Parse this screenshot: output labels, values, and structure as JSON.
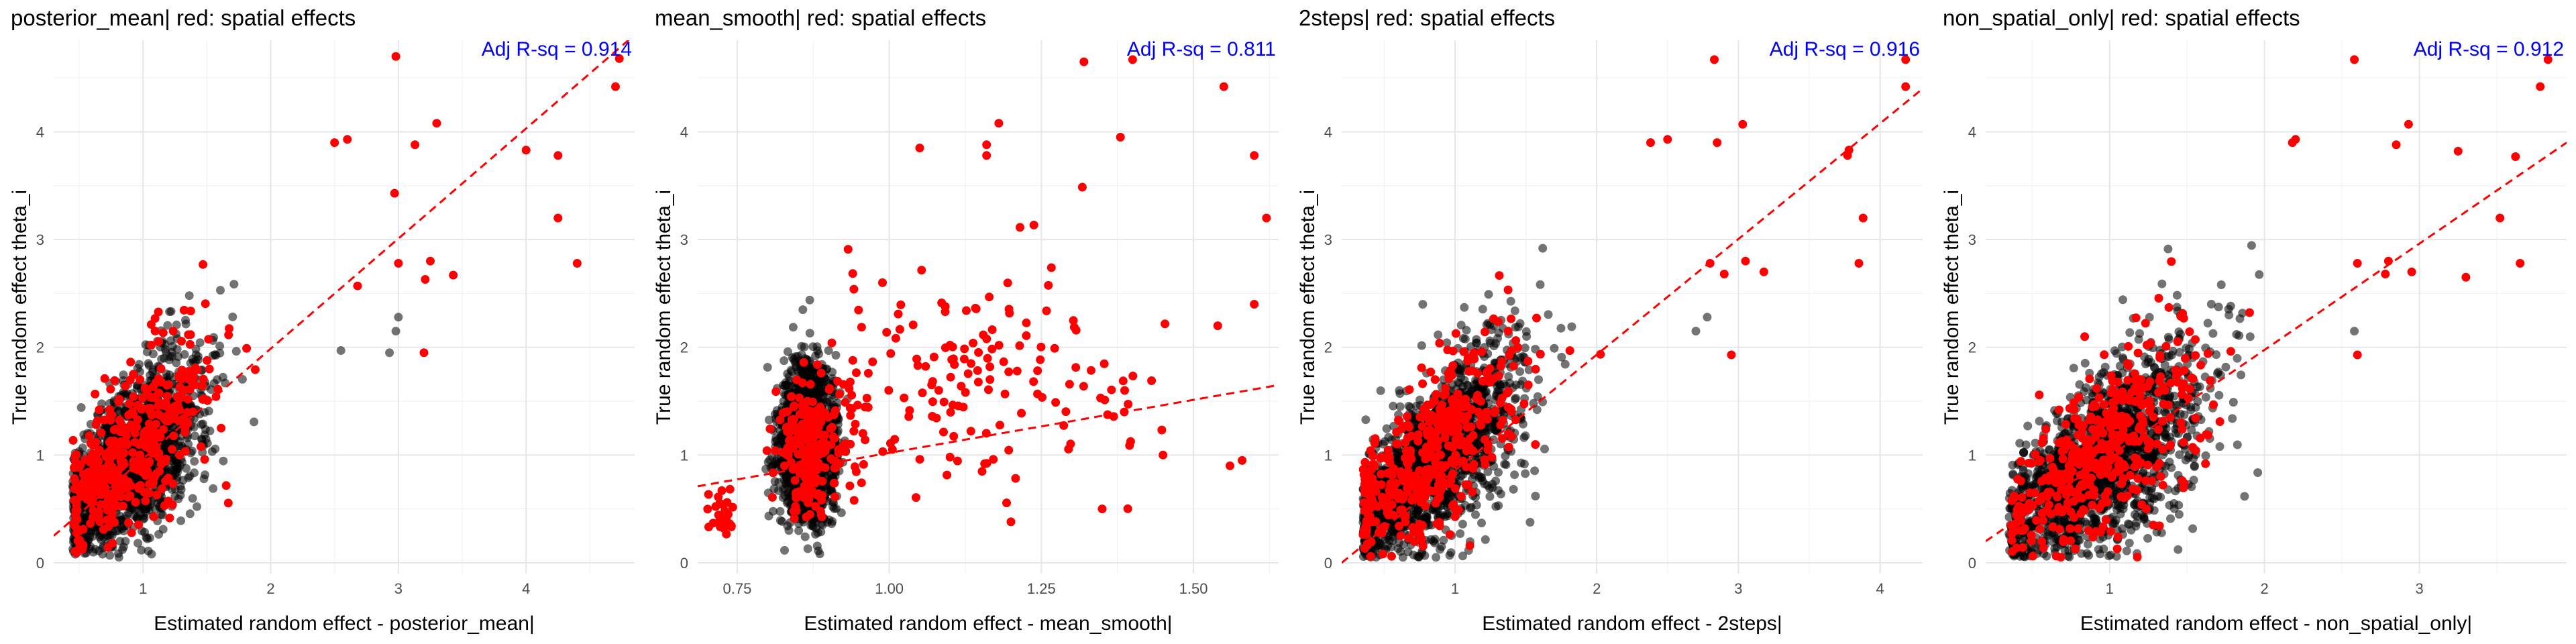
{
  "chart_data": [
    {
      "type": "scatter",
      "title": "posterior_mean| red: spatial effects",
      "xlabel": "Estimated random effect - posterior_mean|",
      "ylabel": "True random effect theta_i",
      "annotation": "Adj R-sq = 0.914",
      "xlim": [
        0.3,
        4.85
      ],
      "ylim": [
        -0.1,
        4.85
      ],
      "xticks": [
        1,
        2,
        3,
        4
      ],
      "yticks": [
        0,
        1,
        2,
        3,
        4
      ],
      "fit_line": {
        "x": [
          0.3,
          4.85
        ],
        "y": [
          0.25,
          4.9
        ]
      },
      "grid": true,
      "series": [
        {
          "color": "#000000",
          "cloud": {
            "cx": 0.9,
            "cy": 0.95,
            "sx": 0.3,
            "sy": 0.45,
            "slope": 1.0,
            "n": 1600,
            "xmin": 0.45,
            "ymin": 0.05
          }
        },
        {
          "color": "#ff0000",
          "cloud": {
            "cx": 0.9,
            "cy": 1.0,
            "sx": 0.3,
            "sy": 0.45,
            "slope": 1.0,
            "n": 420,
            "xmin": 0.45,
            "ymin": 0.05
          }
        }
      ],
      "outliers": [
        {
          "x": 2.98,
          "y": 4.7,
          "red": true
        },
        {
          "x": 3.3,
          "y": 4.08,
          "red": true
        },
        {
          "x": 3.13,
          "y": 3.88,
          "red": true
        },
        {
          "x": 2.6,
          "y": 3.93,
          "red": true
        },
        {
          "x": 2.5,
          "y": 3.9,
          "red": true
        },
        {
          "x": 4.7,
          "y": 4.42,
          "red": true
        },
        {
          "x": 4.73,
          "y": 4.68,
          "red": true
        },
        {
          "x": 4.0,
          "y": 3.83,
          "red": true
        },
        {
          "x": 4.25,
          "y": 3.78,
          "red": true
        },
        {
          "x": 2.97,
          "y": 3.43,
          "red": true
        },
        {
          "x": 3.0,
          "y": 2.78,
          "red": true
        },
        {
          "x": 3.25,
          "y": 2.8,
          "red": true
        },
        {
          "x": 3.43,
          "y": 2.67,
          "red": true
        },
        {
          "x": 3.21,
          "y": 2.63,
          "red": true
        },
        {
          "x": 3.2,
          "y": 1.95,
          "red": true
        },
        {
          "x": 2.93,
          "y": 1.95,
          "red": false
        },
        {
          "x": 2.98,
          "y": 2.15,
          "red": false
        },
        {
          "x": 3.0,
          "y": 2.28,
          "red": false
        },
        {
          "x": 4.25,
          "y": 3.2,
          "red": true
        },
        {
          "x": 4.4,
          "y": 2.78,
          "red": true
        },
        {
          "x": 2.68,
          "y": 2.57,
          "red": true
        },
        {
          "x": 2.55,
          "y": 1.97,
          "red": false
        }
      ]
    },
    {
      "type": "scatter",
      "title": "mean_smooth| red: spatial effects",
      "xlabel": "Estimated random effect - mean_smooth|",
      "ylabel": "True random effect theta_i",
      "annotation": "Adj R-sq = 0.811",
      "xlim": [
        0.685,
        1.64
      ],
      "ylim": [
        -0.1,
        4.85
      ],
      "xticks": [
        0.75,
        1.0,
        1.25,
        1.5
      ],
      "xtick_labels": [
        "0.75",
        "1.00",
        "1.25",
        "1.50"
      ],
      "yticks": [
        0,
        1,
        2,
        3,
        4
      ],
      "fit_line": {
        "x": [
          0.685,
          1.64
        ],
        "y": [
          0.71,
          1.65
        ]
      },
      "grid": true,
      "series": [
        {
          "color": "#000000",
          "cloud": {
            "cx": 0.865,
            "cy": 1.1,
            "sx": 0.022,
            "sy": 0.55,
            "slope": 0.0,
            "n": 1800,
            "xmin": 0.78,
            "ymin": 0.05
          }
        },
        {
          "color": "#ff0000",
          "cloud": {
            "cx": 0.87,
            "cy": 1.05,
            "sx": 0.025,
            "sy": 0.5,
            "slope": 0.0,
            "n": 220,
            "xmin": 0.78,
            "ymin": 0.05
          }
        },
        {
          "color": "#ff0000",
          "cloud": {
            "cx": 1.1,
            "cy": 1.7,
            "sx": 0.16,
            "sy": 0.75,
            "slope": 0.0,
            "n": 170,
            "xmin": 0.9,
            "ymin": 0.3
          }
        },
        {
          "color": "#ff0000",
          "cloud": {
            "cx": 0.725,
            "cy": 0.45,
            "sx": 0.012,
            "sy": 0.2,
            "slope": 0.0,
            "n": 28,
            "xmin": 0.7,
            "ymin": 0.1
          }
        }
      ],
      "outliers": [
        {
          "x": 1.32,
          "y": 4.65,
          "red": true
        },
        {
          "x": 1.55,
          "y": 4.42,
          "red": true
        },
        {
          "x": 1.6,
          "y": 3.78,
          "red": true
        },
        {
          "x": 1.38,
          "y": 3.95,
          "red": true
        },
        {
          "x": 1.18,
          "y": 4.08,
          "red": true
        },
        {
          "x": 1.16,
          "y": 3.88,
          "red": true
        },
        {
          "x": 1.16,
          "y": 3.78,
          "red": true
        },
        {
          "x": 1.05,
          "y": 3.85,
          "red": true
        },
        {
          "x": 1.4,
          "y": 4.67,
          "red": true
        },
        {
          "x": 1.62,
          "y": 3.2,
          "red": true
        },
        {
          "x": 1.45,
          "y": 1.0,
          "red": true
        },
        {
          "x": 1.56,
          "y": 0.9,
          "red": true
        },
        {
          "x": 1.58,
          "y": 0.95,
          "red": true
        },
        {
          "x": 1.35,
          "y": 0.5,
          "red": true
        },
        {
          "x": 1.2,
          "y": 0.38,
          "red": true
        },
        {
          "x": 1.6,
          "y": 2.4,
          "red": true
        },
        {
          "x": 1.54,
          "y": 2.2,
          "red": true
        }
      ]
    },
    {
      "type": "scatter",
      "title": "2steps| red: spatial effects",
      "xlabel": "Estimated random effect - 2steps|",
      "ylabel": "True random effect theta_i",
      "annotation": "Adj R-sq = 0.916",
      "xlim": [
        0.2,
        4.3
      ],
      "ylim": [
        -0.1,
        4.85
      ],
      "xticks": [
        1,
        2,
        3,
        4
      ],
      "yticks": [
        0,
        1,
        2,
        3,
        4
      ],
      "fit_line": {
        "x": [
          0.2,
          4.3
        ],
        "y": [
          0.0,
          4.4
        ]
      },
      "grid": true,
      "series": [
        {
          "color": "#000000",
          "cloud": {
            "cx": 0.85,
            "cy": 0.95,
            "sx": 0.32,
            "sy": 0.45,
            "slope": 1.05,
            "n": 1600,
            "xmin": 0.35,
            "ymin": 0.05
          }
        },
        {
          "color": "#ff0000",
          "cloud": {
            "cx": 0.85,
            "cy": 1.05,
            "sx": 0.32,
            "sy": 0.45,
            "slope": 1.05,
            "n": 420,
            "xmin": 0.35,
            "ymin": 0.05
          }
        }
      ],
      "outliers": [
        {
          "x": 2.83,
          "y": 4.67,
          "red": true
        },
        {
          "x": 3.03,
          "y": 4.07,
          "red": true
        },
        {
          "x": 2.5,
          "y": 3.93,
          "red": true
        },
        {
          "x": 2.38,
          "y": 3.9,
          "red": true
        },
        {
          "x": 2.85,
          "y": 3.9,
          "red": true
        },
        {
          "x": 4.18,
          "y": 4.67,
          "red": true
        },
        {
          "x": 4.18,
          "y": 4.42,
          "red": true
        },
        {
          "x": 3.78,
          "y": 3.83,
          "red": true
        },
        {
          "x": 3.77,
          "y": 3.78,
          "red": true
        },
        {
          "x": 2.8,
          "y": 2.78,
          "red": true
        },
        {
          "x": 3.05,
          "y": 2.8,
          "red": true
        },
        {
          "x": 3.18,
          "y": 2.7,
          "red": true
        },
        {
          "x": 2.9,
          "y": 2.68,
          "red": true
        },
        {
          "x": 2.95,
          "y": 1.93,
          "red": true
        },
        {
          "x": 3.88,
          "y": 3.2,
          "red": true
        },
        {
          "x": 3.85,
          "y": 2.78,
          "red": true
        },
        {
          "x": 2.7,
          "y": 2.15,
          "red": false
        },
        {
          "x": 2.78,
          "y": 2.28,
          "red": false
        }
      ]
    },
    {
      "type": "scatter",
      "title": "non_spatial_only| red: spatial effects",
      "xlabel": "Estimated random effect - non_spatial_only|",
      "ylabel": "True random effect theta_i",
      "annotation": "Adj R-sq = 0.912",
      "xlim": [
        0.2,
        3.95
      ],
      "ylim": [
        -0.1,
        4.85
      ],
      "xticks": [
        1,
        2,
        3
      ],
      "yticks": [
        0,
        1,
        2,
        3,
        4
      ],
      "fit_line": {
        "x": [
          0.2,
          3.95
        ],
        "y": [
          0.2,
          3.9
        ]
      },
      "grid": true,
      "series": [
        {
          "color": "#000000",
          "cloud": {
            "cx": 0.95,
            "cy": 0.95,
            "sx": 0.33,
            "sy": 0.45,
            "slope": 1.0,
            "n": 1600,
            "xmin": 0.35,
            "ymin": 0.05
          }
        },
        {
          "color": "#ff0000",
          "cloud": {
            "cx": 0.95,
            "cy": 1.05,
            "sx": 0.33,
            "sy": 0.45,
            "slope": 1.0,
            "n": 420,
            "xmin": 0.35,
            "ymin": 0.05
          }
        }
      ],
      "outliers": [
        {
          "x": 2.58,
          "y": 4.67,
          "red": true
        },
        {
          "x": 2.93,
          "y": 4.07,
          "red": true
        },
        {
          "x": 2.2,
          "y": 3.93,
          "red": true
        },
        {
          "x": 2.18,
          "y": 3.9,
          "red": true
        },
        {
          "x": 2.85,
          "y": 3.88,
          "red": true
        },
        {
          "x": 3.83,
          "y": 4.67,
          "red": true
        },
        {
          "x": 3.78,
          "y": 4.42,
          "red": true
        },
        {
          "x": 3.25,
          "y": 3.82,
          "red": true
        },
        {
          "x": 3.62,
          "y": 3.77,
          "red": true
        },
        {
          "x": 2.6,
          "y": 2.78,
          "red": true
        },
        {
          "x": 2.8,
          "y": 2.8,
          "red": true
        },
        {
          "x": 2.95,
          "y": 2.7,
          "red": true
        },
        {
          "x": 2.78,
          "y": 2.68,
          "red": true
        },
        {
          "x": 2.6,
          "y": 1.93,
          "red": true
        },
        {
          "x": 3.52,
          "y": 3.2,
          "red": true
        },
        {
          "x": 3.65,
          "y": 2.78,
          "red": true
        },
        {
          "x": 3.3,
          "y": 2.65,
          "red": true
        },
        {
          "x": 2.58,
          "y": 2.15,
          "red": false
        }
      ]
    }
  ]
}
